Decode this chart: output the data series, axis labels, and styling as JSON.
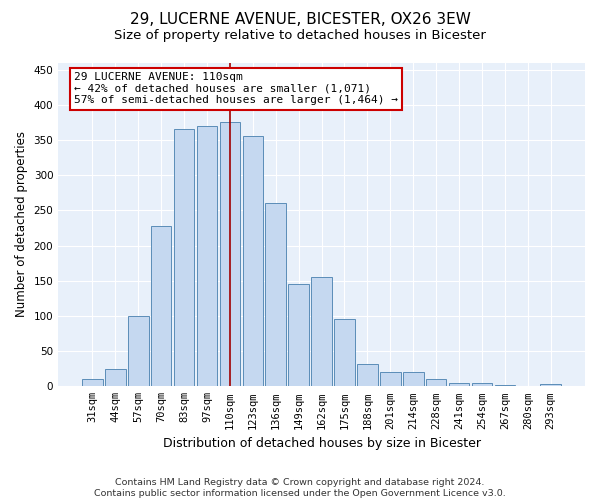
{
  "title": "29, LUCERNE AVENUE, BICESTER, OX26 3EW",
  "subtitle": "Size of property relative to detached houses in Bicester",
  "xlabel": "Distribution of detached houses by size in Bicester",
  "ylabel": "Number of detached properties",
  "categories": [
    "31sqm",
    "44sqm",
    "57sqm",
    "70sqm",
    "83sqm",
    "97sqm",
    "110sqm",
    "123sqm",
    "136sqm",
    "149sqm",
    "162sqm",
    "175sqm",
    "188sqm",
    "201sqm",
    "214sqm",
    "228sqm",
    "241sqm",
    "254sqm",
    "267sqm",
    "280sqm",
    "293sqm"
  ],
  "values": [
    10,
    25,
    100,
    228,
    365,
    370,
    375,
    355,
    260,
    145,
    155,
    95,
    32,
    20,
    20,
    10,
    4,
    5,
    2,
    1,
    3
  ],
  "bar_color": "#c5d8f0",
  "bar_edge_color": "#5b8db8",
  "highlight_line_index": 6,
  "highlight_line_color": "#a00000",
  "annotation_line1": "29 LUCERNE AVENUE: 110sqm",
  "annotation_line2": "← 42% of detached houses are smaller (1,071)",
  "annotation_line3": "57% of semi-detached houses are larger (1,464) →",
  "annotation_box_color": "#ffffff",
  "annotation_box_edge_color": "#cc0000",
  "ylim": [
    0,
    460
  ],
  "yticks": [
    0,
    50,
    100,
    150,
    200,
    250,
    300,
    350,
    400,
    450
  ],
  "background_color": "#e8f0fa",
  "footer_line1": "Contains HM Land Registry data © Crown copyright and database right 2024.",
  "footer_line2": "Contains public sector information licensed under the Open Government Licence v3.0.",
  "title_fontsize": 11,
  "subtitle_fontsize": 9.5,
  "xlabel_fontsize": 9,
  "ylabel_fontsize": 8.5,
  "tick_fontsize": 7.5,
  "annotation_fontsize": 8,
  "footer_fontsize": 6.8
}
